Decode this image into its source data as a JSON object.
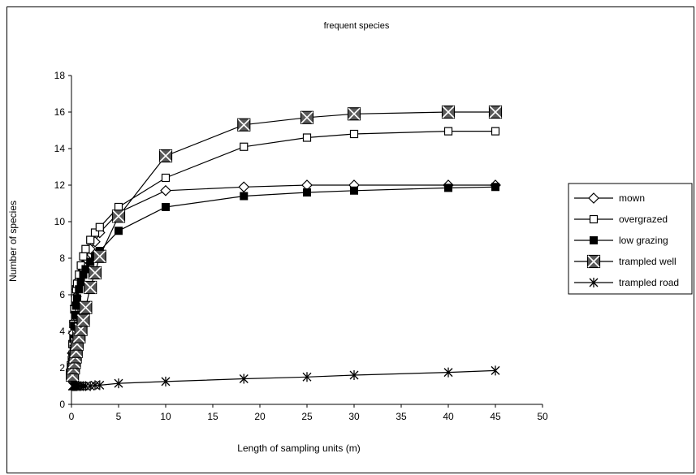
{
  "chart_data": {
    "type": "line",
    "title": "frequent species",
    "xlabel": "Length of sampling units (m)",
    "ylabel": "Number of species",
    "xlim": [
      0,
      50
    ],
    "ylim": [
      0,
      18
    ],
    "xticks": [
      "0",
      "5",
      "10",
      "15",
      "20",
      "25",
      "30",
      "35",
      "40",
      "45",
      "50"
    ],
    "yticks": [
      "0",
      "2",
      "4",
      "6",
      "8",
      "10",
      "12",
      "14",
      "16",
      "18"
    ],
    "grid": false,
    "legend_position": "right",
    "series": [
      {
        "name": "mown",
        "marker": "diamond-open",
        "color": "#000000",
        "x": [
          0.1,
          0.2,
          0.3,
          0.4,
          0.5,
          0.6,
          0.8,
          1,
          1.25,
          1.5,
          2,
          2.5,
          3,
          5,
          10,
          18.3,
          25,
          30,
          40,
          45
        ],
        "y": [
          2.8,
          3.9,
          4.5,
          5.4,
          5.9,
          6.3,
          6.8,
          7.2,
          7.6,
          8.0,
          8.5,
          8.9,
          9.4,
          10.5,
          11.7,
          11.9,
          12.0,
          12.0,
          12.0,
          12.0
        ]
      },
      {
        "name": "overgrazed",
        "marker": "square-open",
        "color": "#000000",
        "x": [
          0.1,
          0.2,
          0.3,
          0.4,
          0.5,
          0.6,
          0.8,
          1,
          1.25,
          1.5,
          2,
          2.5,
          3,
          5,
          10,
          18.3,
          25,
          30,
          40,
          45
        ],
        "y": [
          3.3,
          4.4,
          5.2,
          5.8,
          6.3,
          6.6,
          7.1,
          7.6,
          8.1,
          8.5,
          9.0,
          9.4,
          9.7,
          10.8,
          12.4,
          14.1,
          14.6,
          14.8,
          14.95,
          14.95
        ]
      },
      {
        "name": "low grazing",
        "marker": "square-filled",
        "color": "#000000",
        "x": [
          0.1,
          0.2,
          0.3,
          0.4,
          0.5,
          0.6,
          0.8,
          1,
          1.25,
          1.5,
          2,
          2.5,
          3,
          5,
          10,
          18.3,
          25,
          30,
          40,
          45
        ],
        "y": [
          2.7,
          3.6,
          4.3,
          4.9,
          5.4,
          5.8,
          6.3,
          6.7,
          7.1,
          7.4,
          7.8,
          8.1,
          8.4,
          9.5,
          10.8,
          11.4,
          11.6,
          11.7,
          11.85,
          11.9
        ]
      },
      {
        "name": "trampled well",
        "marker": "square-x",
        "color": "#000000",
        "x": [
          0.1,
          0.2,
          0.3,
          0.4,
          0.5,
          0.6,
          0.8,
          1,
          1.25,
          1.5,
          2,
          2.5,
          3,
          5,
          10,
          18.3,
          25,
          30,
          40,
          45
        ],
        "y": [
          1.6,
          2.0,
          2.3,
          2.6,
          2.9,
          3.3,
          3.7,
          4.1,
          4.6,
          5.3,
          6.4,
          7.2,
          8.1,
          10.3,
          13.6,
          15.3,
          15.7,
          15.9,
          16.0,
          16.0
        ]
      },
      {
        "name": "trampled road",
        "marker": "asterisk",
        "color": "#000000",
        "x": [
          0.1,
          0.2,
          0.3,
          0.4,
          0.5,
          0.6,
          0.8,
          1,
          1.25,
          1.5,
          2,
          2.5,
          3,
          5,
          10,
          18.3,
          25,
          30,
          40,
          45
        ],
        "y": [
          1.0,
          1.0,
          1.0,
          1.0,
          1.0,
          1.0,
          1.0,
          1.0,
          1.0,
          1.0,
          1.0,
          1.05,
          1.05,
          1.15,
          1.25,
          1.4,
          1.5,
          1.6,
          1.75,
          1.85
        ]
      }
    ]
  }
}
